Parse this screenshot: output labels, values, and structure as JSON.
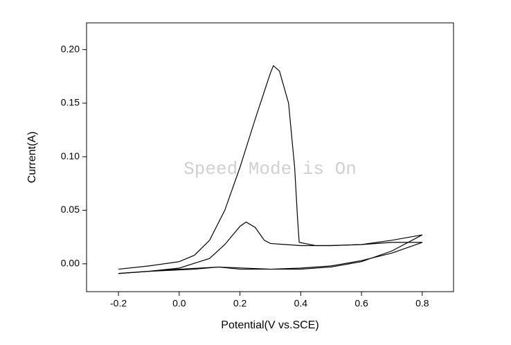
{
  "chart_data": {
    "type": "line",
    "watermark": "Speed Mode is On",
    "x_label": "Potential(V vs.SCE)",
    "y_label": "Current(A)",
    "xlim": [
      -0.305,
      0.903
    ],
    "ylim": [
      -0.026,
      0.225
    ],
    "xticks": [
      -0.2,
      {
        "value": 0,
        "label": "0.0"
      },
      0.2,
      0.4,
      0.6,
      0.8
    ],
    "yticks": [
      {
        "value": 0,
        "label": "0.00"
      },
      0.05,
      {
        "value": 0.1,
        "label": "0.10"
      },
      0.15,
      {
        "value": 0.2,
        "label": "0.20"
      }
    ],
    "grid": false,
    "series": [
      {
        "color": "#000000",
        "x": [
          -0.2,
          -0.1,
          0.0,
          0.05,
          0.1,
          0.15,
          0.2,
          0.25,
          0.3,
          0.31,
          0.33,
          0.36,
          0.38,
          0.39,
          0.395,
          0.45,
          0.5,
          0.6,
          0.7,
          0.8,
          0.7,
          0.6,
          0.5,
          0.4,
          0.3,
          0.2,
          0.13,
          0.05,
          -0.1,
          -0.2
        ],
        "values": [
          -0.005,
          -0.002,
          0.002,
          0.008,
          0.022,
          0.05,
          0.09,
          0.135,
          0.178,
          0.185,
          0.18,
          0.15,
          0.09,
          0.04,
          0.02,
          0.017,
          0.017,
          0.018,
          0.022,
          0.027,
          0.012,
          0.002,
          -0.003,
          -0.005,
          -0.005,
          -0.005,
          -0.003,
          -0.005,
          -0.007,
          -0.009
        ]
      },
      {
        "color": "#000000",
        "x": [
          -0.2,
          -0.1,
          0.0,
          0.1,
          0.15,
          0.2,
          0.22,
          0.25,
          0.28,
          0.3,
          0.35,
          0.4,
          0.5,
          0.6,
          0.7,
          0.8,
          0.7,
          0.6,
          0.5,
          0.4,
          0.3,
          0.13,
          0.0,
          -0.2
        ],
        "values": [
          -0.009,
          -0.007,
          -0.004,
          0.005,
          0.018,
          0.035,
          0.039,
          0.034,
          0.022,
          0.019,
          0.018,
          0.017,
          0.017,
          0.018,
          0.02,
          0.02,
          0.01,
          0.003,
          -0.002,
          -0.004,
          -0.005,
          -0.003,
          -0.005,
          -0.009
        ]
      }
    ]
  }
}
